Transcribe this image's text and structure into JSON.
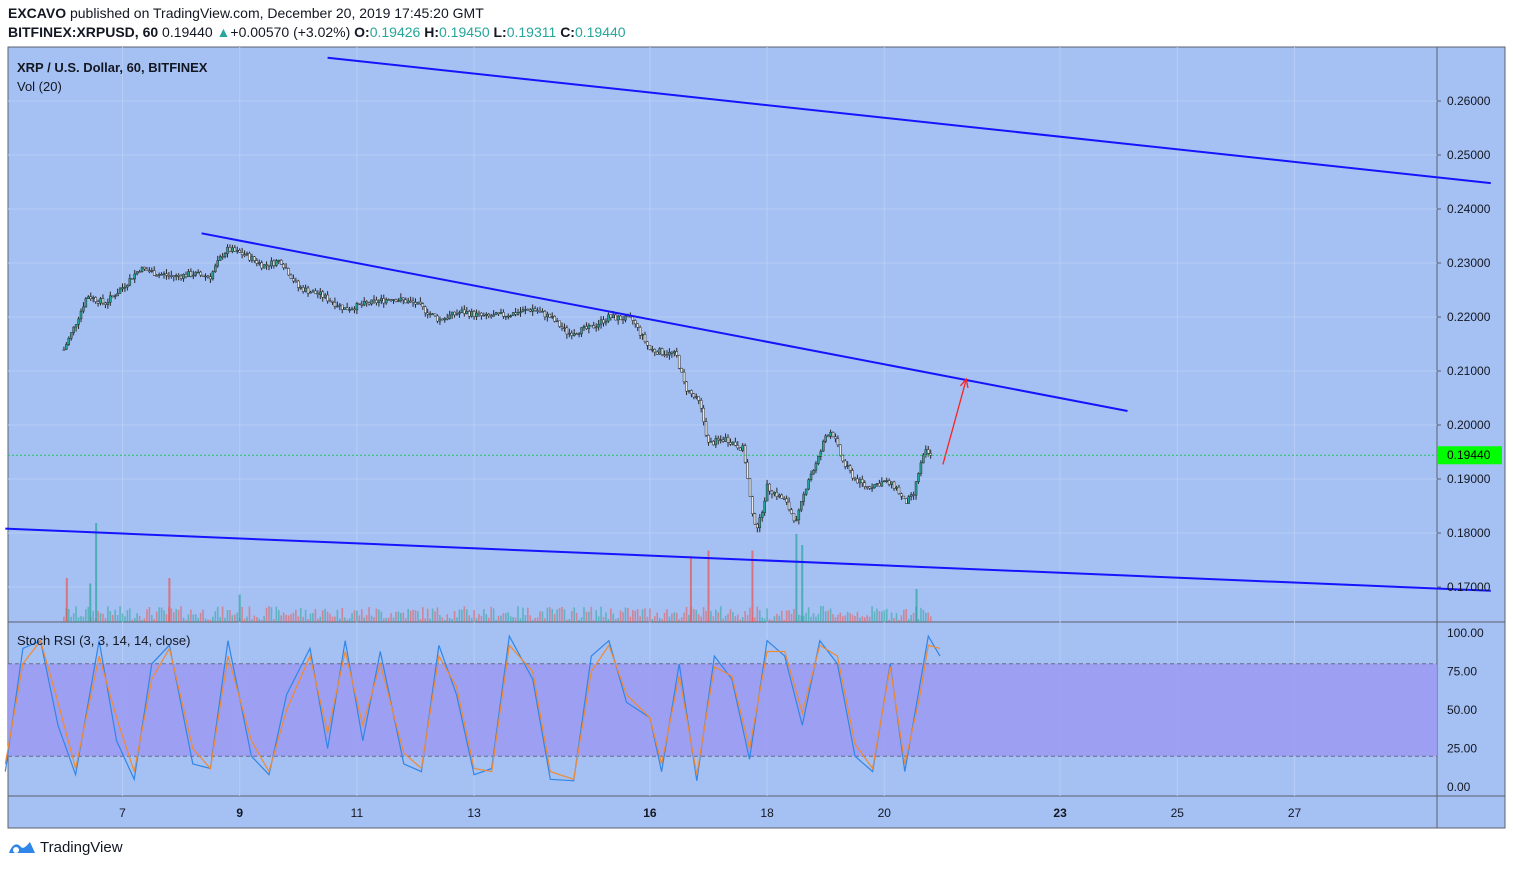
{
  "header": {
    "author": "EXCAVO",
    "published_text": "published on TradingView.com, December 20, 2019 17:45:20 GMT",
    "symbol": "BITFINEX:XRPUSD, 60",
    "last": "0.19440",
    "change_icon": "up-triangle",
    "change": "+0.00570 (+3.02%)",
    "o_label": "O:",
    "o": "0.19426",
    "h_label": "H:",
    "h": "0.19450",
    "l_label": "L:",
    "l": "0.19311",
    "c_label": "C:",
    "c": "0.19440"
  },
  "main_pane": {
    "title": "XRP / U.S. Dollar, 60, BITFINEX",
    "volume_label": "Vol (20)"
  },
  "rsi_pane": {
    "title": "Stoch RSI (3, 3, 14, 14, close)"
  },
  "footer": {
    "brand": "TradingView",
    "logo_icon": "tradingview-logo-icon"
  },
  "colors": {
    "background": "#a5c0f2",
    "up": "#26a69a",
    "down": "#ef5350",
    "trendline": "#1414ff",
    "price_tag": "#00ff00",
    "rsi_band": "#9c9cf2",
    "k_line": "#2f86e8",
    "d_line": "#f08a33",
    "arrow": "#ff2020"
  },
  "chart_data": [
    {
      "type": "candlestick",
      "title": "XRP / U.S. Dollar, 60, BITFINEX",
      "x_tick_labels": [
        "7",
        "9",
        "11",
        "13",
        "16",
        "18",
        "20",
        "23",
        "25",
        "27"
      ],
      "y_tick_labels": [
        "0.26000",
        "0.25000",
        "0.24000",
        "0.23000",
        "0.22000",
        "0.21000",
        "0.20000",
        "0.19000",
        "0.18000",
        "0.17000"
      ],
      "ylim": [
        0.1655,
        0.2675
      ],
      "last_price_label": "0.19440",
      "last_price": 0.1944,
      "x_unit": "day of December 2019",
      "price_path": [
        {
          "day": 6.0,
          "close": 0.214
        },
        {
          "day": 6.15,
          "close": 0.2175
        },
        {
          "day": 6.4,
          "close": 0.224
        },
        {
          "day": 6.7,
          "close": 0.2225
        },
        {
          "day": 7.0,
          "close": 0.2255
        },
        {
          "day": 7.3,
          "close": 0.229
        },
        {
          "day": 7.6,
          "close": 0.228
        },
        {
          "day": 7.9,
          "close": 0.2275
        },
        {
          "day": 8.2,
          "close": 0.228
        },
        {
          "day": 8.5,
          "close": 0.2275
        },
        {
          "day": 8.7,
          "close": 0.2315
        },
        {
          "day": 8.8,
          "close": 0.2325
        },
        {
          "day": 9.1,
          "close": 0.2315
        },
        {
          "day": 9.4,
          "close": 0.2295
        },
        {
          "day": 9.7,
          "close": 0.2305
        },
        {
          "day": 10.0,
          "close": 0.2255
        },
        {
          "day": 10.4,
          "close": 0.224
        },
        {
          "day": 10.8,
          "close": 0.2215
        },
        {
          "day": 11.2,
          "close": 0.2225
        },
        {
          "day": 11.6,
          "close": 0.2235
        },
        {
          "day": 12.0,
          "close": 0.2225
        },
        {
          "day": 12.4,
          "close": 0.2195
        },
        {
          "day": 12.8,
          "close": 0.221
        },
        {
          "day": 13.2,
          "close": 0.22
        },
        {
          "day": 13.6,
          "close": 0.2205
        },
        {
          "day": 14.0,
          "close": 0.2215
        },
        {
          "day": 14.3,
          "close": 0.22
        },
        {
          "day": 14.6,
          "close": 0.217
        },
        {
          "day": 15.0,
          "close": 0.218
        },
        {
          "day": 15.3,
          "close": 0.22
        },
        {
          "day": 15.7,
          "close": 0.2195
        },
        {
          "day": 16.0,
          "close": 0.214
        },
        {
          "day": 16.2,
          "close": 0.2135
        },
        {
          "day": 16.45,
          "close": 0.213
        },
        {
          "day": 16.6,
          "close": 0.207
        },
        {
          "day": 16.85,
          "close": 0.204
        },
        {
          "day": 17.0,
          "close": 0.1965
        },
        {
          "day": 17.3,
          "close": 0.1975
        },
        {
          "day": 17.6,
          "close": 0.1955
        },
        {
          "day": 17.75,
          "close": 0.183
        },
        {
          "day": 17.85,
          "close": 0.181
        },
        {
          "day": 18.0,
          "close": 0.1885
        },
        {
          "day": 18.3,
          "close": 0.186
        },
        {
          "day": 18.5,
          "close": 0.182
        },
        {
          "day": 18.7,
          "close": 0.19
        },
        {
          "day": 18.85,
          "close": 0.193
        },
        {
          "day": 19.0,
          "close": 0.198
        },
        {
          "day": 19.1,
          "close": 0.199
        },
        {
          "day": 19.3,
          "close": 0.193
        },
        {
          "day": 19.5,
          "close": 0.19
        },
        {
          "day": 19.7,
          "close": 0.1885
        },
        {
          "day": 20.0,
          "close": 0.1895
        },
        {
          "day": 20.2,
          "close": 0.1885
        },
        {
          "day": 20.35,
          "close": 0.1855
        },
        {
          "day": 20.5,
          "close": 0.187
        },
        {
          "day": 20.6,
          "close": 0.192
        },
        {
          "day": 20.7,
          "close": 0.195
        },
        {
          "day": 20.8,
          "close": 0.1944
        }
      ],
      "volume_spikes": [
        {
          "day": 6.55,
          "level": 0.9,
          "dir": "up"
        },
        {
          "day": 6.45,
          "level": 0.35,
          "dir": "up"
        },
        {
          "day": 6.05,
          "level": 0.4,
          "dir": "down"
        },
        {
          "day": 7.8,
          "level": 0.4,
          "dir": "down"
        },
        {
          "day": 9.0,
          "level": 0.25,
          "dir": "up"
        },
        {
          "day": 16.7,
          "level": 0.6,
          "dir": "down"
        },
        {
          "day": 17.0,
          "level": 0.65,
          "dir": "down"
        },
        {
          "day": 17.75,
          "level": 0.65,
          "dir": "down"
        },
        {
          "day": 18.5,
          "level": 0.8,
          "dir": "up"
        },
        {
          "day": 18.6,
          "level": 0.7,
          "dir": "up"
        },
        {
          "day": 20.55,
          "level": 0.3,
          "dir": "up"
        }
      ],
      "trendlines": [
        {
          "name": "upper-channel",
          "from": {
            "day": 10.5,
            "price": 0.268
          },
          "to": {
            "day": 30.35,
            "price": 0.2448
          }
        },
        {
          "name": "descending-resistance",
          "from": {
            "day": 8.35,
            "price": 0.2355
          },
          "to": {
            "day": 24.15,
            "price": 0.2026
          }
        },
        {
          "name": "lower-channel",
          "from": {
            "day": 5.0,
            "price": 0.1808
          },
          "to": {
            "day": 30.35,
            "price": 0.1693
          }
        }
      ],
      "arrow": {
        "from": {
          "day": 21.0,
          "price": 0.1927
        },
        "to": {
          "day": 21.4,
          "price": 0.2085
        }
      }
    },
    {
      "type": "line",
      "title": "Stoch RSI (3, 3, 14, 14, close)",
      "y_tick_labels": [
        "100.00",
        "75.00",
        "50.00",
        "25.00",
        "0.00"
      ],
      "ylim": [
        0,
        100
      ],
      "band": [
        20,
        80
      ],
      "series": [
        {
          "name": "K",
          "points": [
            [
              5.0,
              10
            ],
            [
              5.3,
              90
            ],
            [
              5.6,
              95
            ],
            [
              5.9,
              40
            ],
            [
              6.2,
              8
            ],
            [
              6.6,
              95
            ],
            [
              6.9,
              30
            ],
            [
              7.2,
              5
            ],
            [
              7.5,
              80
            ],
            [
              7.8,
              92
            ],
            [
              8.2,
              15
            ],
            [
              8.5,
              12
            ],
            [
              8.8,
              95
            ],
            [
              9.2,
              20
            ],
            [
              9.5,
              8
            ],
            [
              9.8,
              60
            ],
            [
              10.2,
              90
            ],
            [
              10.5,
              25
            ],
            [
              10.8,
              95
            ],
            [
              11.1,
              30
            ],
            [
              11.4,
              88
            ],
            [
              11.8,
              15
            ],
            [
              12.1,
              10
            ],
            [
              12.4,
              92
            ],
            [
              12.7,
              60
            ],
            [
              13.0,
              8
            ],
            [
              13.3,
              12
            ],
            [
              13.6,
              98
            ],
            [
              14.0,
              70
            ],
            [
              14.3,
              5
            ],
            [
              14.7,
              4
            ],
            [
              15.0,
              85
            ],
            [
              15.3,
              95
            ],
            [
              15.6,
              55
            ],
            [
              16.0,
              45
            ],
            [
              16.2,
              10
            ],
            [
              16.5,
              80
            ],
            [
              16.8,
              4
            ],
            [
              17.1,
              85
            ],
            [
              17.4,
              70
            ],
            [
              17.7,
              18
            ],
            [
              18.0,
              95
            ],
            [
              18.3,
              85
            ],
            [
              18.6,
              40
            ],
            [
              18.9,
              95
            ],
            [
              19.2,
              80
            ],
            [
              19.5,
              20
            ],
            [
              19.8,
              10
            ],
            [
              20.1,
              80
            ],
            [
              20.35,
              10
            ],
            [
              20.6,
              65
            ],
            [
              20.75,
              98
            ],
            [
              20.95,
              85
            ]
          ]
        },
        {
          "name": "D",
          "points": [
            [
              5.0,
              15
            ],
            [
              5.3,
              80
            ],
            [
              5.6,
              95
            ],
            [
              5.9,
              55
            ],
            [
              6.2,
              12
            ],
            [
              6.6,
              85
            ],
            [
              6.9,
              45
            ],
            [
              7.2,
              10
            ],
            [
              7.5,
              70
            ],
            [
              7.8,
              90
            ],
            [
              8.2,
              25
            ],
            [
              8.5,
              12
            ],
            [
              8.8,
              85
            ],
            [
              9.2,
              30
            ],
            [
              9.5,
              10
            ],
            [
              9.8,
              50
            ],
            [
              10.2,
              85
            ],
            [
              10.5,
              35
            ],
            [
              10.8,
              88
            ],
            [
              11.1,
              40
            ],
            [
              11.4,
              80
            ],
            [
              11.8,
              22
            ],
            [
              12.1,
              12
            ],
            [
              12.4,
              85
            ],
            [
              12.7,
              65
            ],
            [
              13.0,
              12
            ],
            [
              13.3,
              10
            ],
            [
              13.6,
              92
            ],
            [
              14.0,
              75
            ],
            [
              14.3,
              10
            ],
            [
              14.7,
              5
            ],
            [
              15.0,
              75
            ],
            [
              15.3,
              92
            ],
            [
              15.6,
              60
            ],
            [
              16.0,
              45
            ],
            [
              16.2,
              15
            ],
            [
              16.5,
              72
            ],
            [
              16.8,
              8
            ],
            [
              17.1,
              78
            ],
            [
              17.4,
              72
            ],
            [
              17.7,
              25
            ],
            [
              18.0,
              88
            ],
            [
              18.3,
              88
            ],
            [
              18.6,
              48
            ],
            [
              18.9,
              92
            ],
            [
              19.2,
              85
            ],
            [
              19.5,
              28
            ],
            [
              19.8,
              12
            ],
            [
              20.1,
              78
            ],
            [
              20.35,
              15
            ],
            [
              20.6,
              58
            ],
            [
              20.75,
              92
            ],
            [
              20.95,
              90
            ]
          ]
        }
      ]
    }
  ]
}
